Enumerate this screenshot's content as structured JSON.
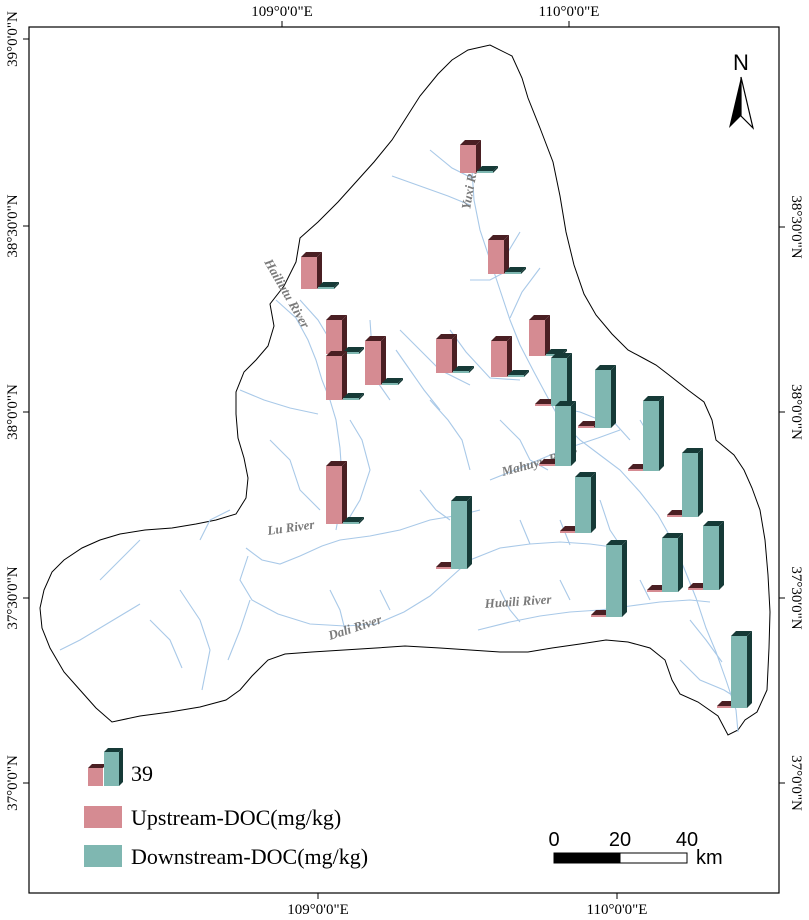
{
  "grid_labels": {
    "top": [
      "109°0'0\"E",
      "110°0'0\"E"
    ],
    "bottom": [
      "109°0'0\"E",
      "110°0'0\"E"
    ],
    "left": [
      "39°0'0\"N",
      "38°30'0\"N",
      "38°0'0\"N",
      "37°30'0\"N",
      "37°0'0\"N"
    ],
    "right": [
      "38°30'0\"N",
      "38°0'0\"N",
      "37°30'0\"N",
      "37°0'0\"N"
    ]
  },
  "rivers": {
    "yuxi": "Yuxi River",
    "hailiutu": "Hailiutu River",
    "mahuyu": "Mahuyu River",
    "lu": "Lu River",
    "dali": "Dali River",
    "huaili": "Huaili River"
  },
  "north_arrow": {
    "label": "N",
    "icon": "north-arrow-icon"
  },
  "legend": {
    "scale_value": "39",
    "upstream_label": "Upstream-DOC(mg/kg)",
    "downstream_label": "Downstream-DOC(mg/kg)",
    "upstream_color": "#d58b92",
    "downstream_color": "#7fb7b1"
  },
  "scale_bar": {
    "ticks": [
      "0",
      "20",
      "40"
    ],
    "unit": "km"
  },
  "colors": {
    "upstream_fill": "#d58b92",
    "upstream_side": "#4a1f23",
    "downstream_fill": "#7fb7b1",
    "downstream_side": "#163a37",
    "river": "#a9c9e8",
    "boundary": "#000000"
  }
}
